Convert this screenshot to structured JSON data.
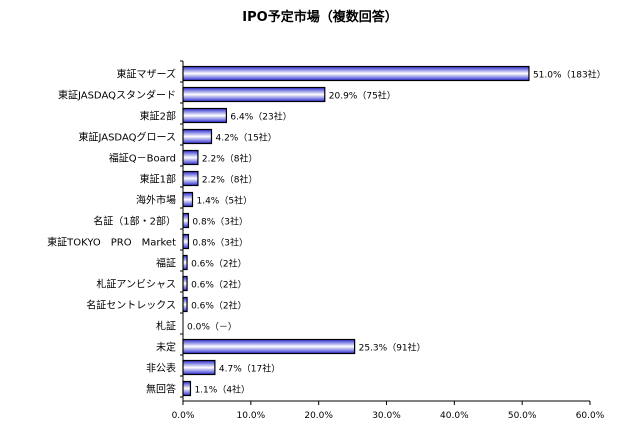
{
  "chart_data": {
    "type": "bar",
    "orientation": "horizontal",
    "title": "IPO予定市場（複数回答）",
    "xlabel": "",
    "ylabel": "",
    "xlim": [
      0,
      60
    ],
    "xticks": [
      "0.0%",
      "10.0%",
      "20.0%",
      "30.0%",
      "40.0%",
      "50.0%",
      "60.0%"
    ],
    "grid": false,
    "categories": [
      "東証マザーズ",
      "東証JASDAQスタンダード",
      "東証2部",
      "東証JASDAQグロース",
      "福証Q－Board",
      "東証1部",
      "海外市場",
      "名証（1部・2部）",
      "東証TOKYO　PRO　Market",
      "福証",
      "札証アンビシャス",
      "名証セントレックス",
      "札証",
      "未定",
      "非公表",
      "無回答"
    ],
    "values": [
      51.0,
      20.9,
      6.4,
      4.2,
      2.2,
      2.2,
      1.4,
      0.8,
      0.8,
      0.6,
      0.6,
      0.6,
      0.0,
      25.3,
      4.7,
      1.1
    ],
    "data_labels": [
      "51.0%（183社）",
      "20.9%（75社）",
      "6.4%（23社）",
      "4.2%（15社）",
      "2.2%（8社）",
      "2.2%（8社）",
      "1.4%（5社）",
      "0.8%（3社）",
      "0.8%（3社）",
      "0.6%（2社）",
      "0.6%（2社）",
      "0.6%（2社）",
      "0.0%（－）",
      "25.3%（91社）",
      "4.7%（17社）",
      "1.1%（4社）"
    ],
    "bar_color": "#3333cc"
  }
}
